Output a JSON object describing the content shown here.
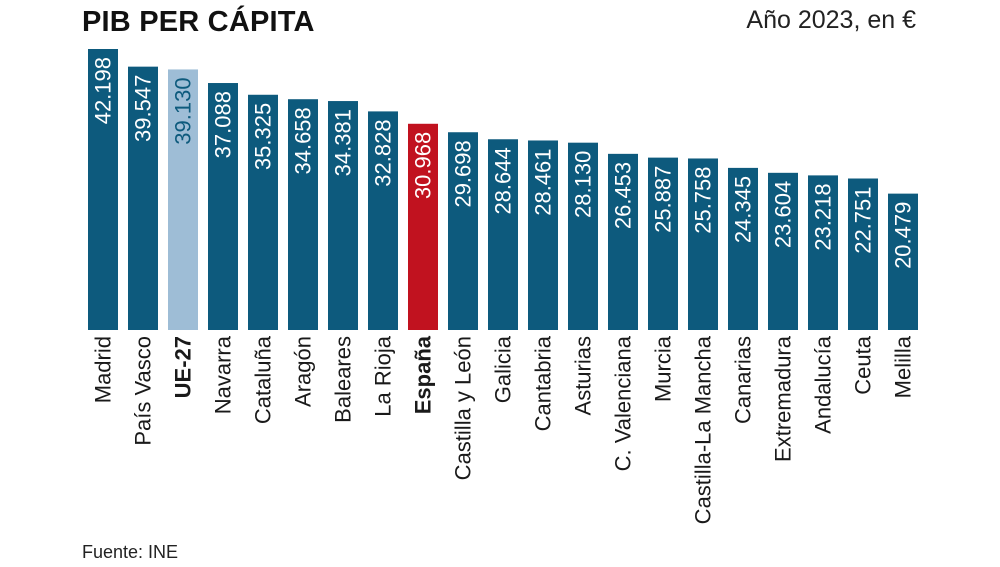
{
  "chart_data": {
    "type": "bar",
    "title": "PIB PER CÁPITA",
    "subtitle": "Año 2023, en €",
    "source": "Fuente: INE",
    "categories": [
      "Madrid",
      "País Vasco",
      "UE-27",
      "Navarra",
      "Cataluña",
      "Aragón",
      "Baleares",
      "La Rioja",
      "España",
      "Castilla y León",
      "Galicia",
      "Cantabria",
      "Asturias",
      "C. Valenciana",
      "Murcia",
      "Castilla-La Mancha",
      "Canarias",
      "Extremadura",
      "Andalucía",
      "Ceuta",
      "Melilla"
    ],
    "values": [
      42198,
      39547,
      39130,
      37088,
      35325,
      34658,
      34381,
      32828,
      30968,
      29698,
      28644,
      28461,
      28130,
      26453,
      25887,
      25758,
      24345,
      23604,
      23218,
      22751,
      20479
    ],
    "value_labels": [
      "42.198",
      "39.547",
      "39.130",
      "37.088",
      "35.325",
      "34.658",
      "34.381",
      "32.828",
      "30.968",
      "29.698",
      "28.644",
      "28.461",
      "28.130",
      "26.453",
      "25.887",
      "25.758",
      "24.345",
      "23.604",
      "23.218",
      "22.751",
      "20.479"
    ],
    "highlight": {
      "UE-27": "eu",
      "España": "spain"
    },
    "bold_categories": [
      "UE-27",
      "España"
    ],
    "colors": {
      "default": "#0d5a7d",
      "eu": "#9ebdd6",
      "spain": "#c1121f",
      "label_default": "#ffffff",
      "label_eu": "#0d5a7d"
    },
    "ylim": [
      0,
      42198
    ],
    "grid": false,
    "legend": "none"
  }
}
